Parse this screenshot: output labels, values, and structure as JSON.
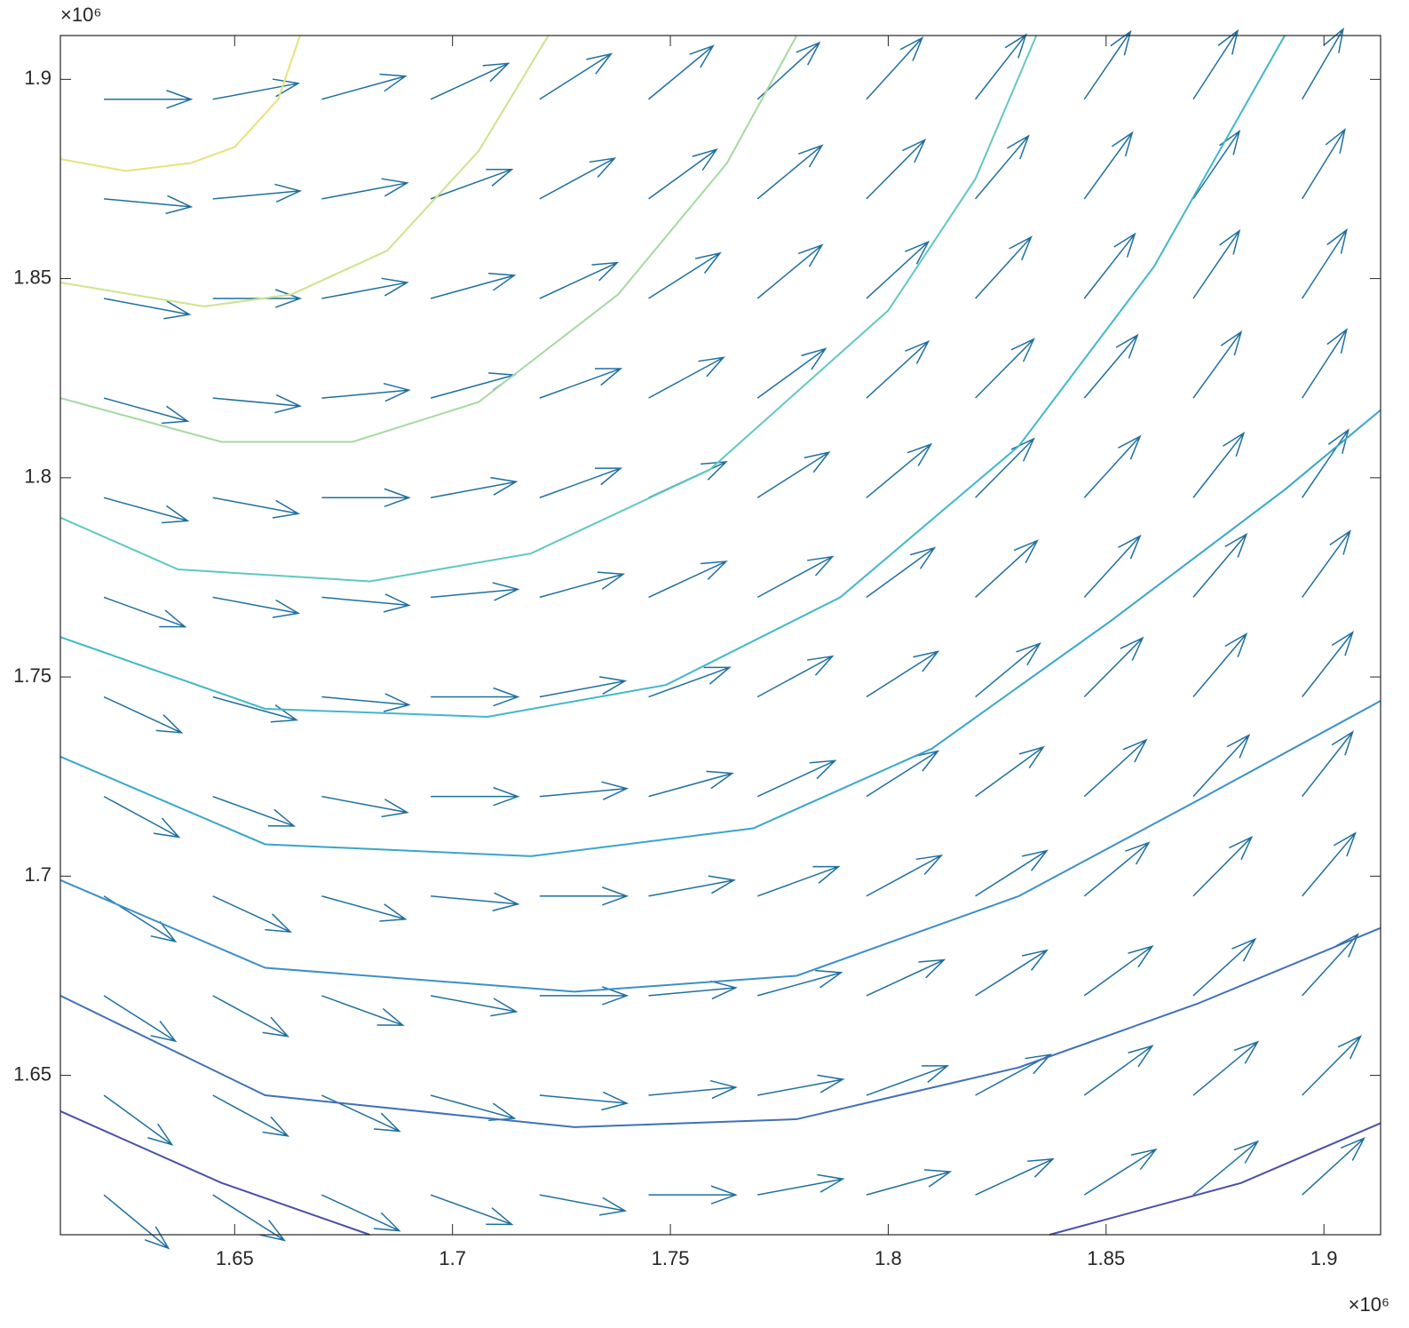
{
  "chart_data": {
    "type": "quiver",
    "xlim": [
      1.61,
      1.913
    ],
    "ylim": [
      1.61,
      1.911
    ],
    "xticks": [
      1.65,
      1.7,
      1.75,
      1.8,
      1.85,
      1.9
    ],
    "yticks": [
      1.65,
      1.7,
      1.75,
      1.8,
      1.85,
      1.9
    ],
    "x_exponent_label": "×10⁶",
    "y_exponent_label": "×10⁶",
    "box": true,
    "grid": false,
    "quiver": {
      "color": "#1f6f9f",
      "x": [
        1.62,
        1.645,
        1.67,
        1.695,
        1.72,
        1.745,
        1.77,
        1.795,
        1.82,
        1.845,
        1.87,
        1.895
      ],
      "y": [
        1.62,
        1.645,
        1.67,
        1.695,
        1.72,
        1.745,
        1.77,
        1.795,
        1.82,
        1.845,
        1.87,
        1.895
      ],
      "u": [
        [
          0.74,
          0.82,
          0.89,
          0.93,
          0.98,
          1,
          0.98,
          0.96,
          0.89,
          0.82,
          0.74,
          0.71
        ],
        [
          0.78,
          0.86,
          0.89,
          0.96,
          1,
          1,
          0.98,
          0.93,
          0.86,
          0.78,
          0.74,
          0.67
        ],
        [
          0.82,
          0.86,
          0.93,
          0.98,
          1,
          1,
          0.96,
          0.89,
          0.82,
          0.78,
          0.71,
          0.64
        ],
        [
          0.82,
          0.89,
          0.96,
          1,
          1,
          0.98,
          0.93,
          0.86,
          0.82,
          0.74,
          0.67,
          0.61
        ],
        [
          0.86,
          0.93,
          0.98,
          1,
          1,
          0.96,
          0.89,
          0.82,
          0.78,
          0.71,
          0.64,
          0.58
        ],
        [
          0.89,
          0.96,
          1,
          1,
          0.98,
          0.93,
          0.86,
          0.82,
          0.74,
          0.67,
          0.61,
          0.58
        ],
        [
          0.93,
          0.98,
          1,
          1,
          0.96,
          0.89,
          0.86,
          0.78,
          0.71,
          0.64,
          0.61,
          0.55
        ],
        [
          0.96,
          0.98,
          1,
          0.98,
          0.93,
          0.89,
          0.82,
          0.74,
          0.67,
          0.64,
          0.58,
          0.53
        ],
        [
          0.96,
          1,
          1,
          0.96,
          0.93,
          0.86,
          0.78,
          0.71,
          0.67,
          0.61,
          0.55,
          0.51
        ],
        [
          0.98,
          1,
          0.98,
          0.96,
          0.89,
          0.82,
          0.74,
          0.71,
          0.64,
          0.58,
          0.53,
          0.51
        ],
        [
          1,
          1,
          0.98,
          0.93,
          0.86,
          0.78,
          0.74,
          0.67,
          0.61,
          0.55,
          0.53,
          0.49
        ],
        [
          1,
          0.98,
          0.96,
          0.89,
          0.82,
          0.74,
          0.71,
          0.64,
          0.58,
          0.53,
          0.51,
          0.47
        ]
      ],
      "v": [
        [
          -0.67,
          -0.57,
          -0.45,
          -0.37,
          -0.2,
          0,
          0.2,
          0.29,
          0.45,
          0.57,
          0.67,
          0.71
        ],
        [
          -0.62,
          -0.51,
          -0.45,
          -0.29,
          -0.1,
          0.1,
          0.2,
          0.37,
          0.51,
          0.62,
          0.67,
          0.74
        ],
        [
          -0.57,
          -0.51,
          -0.37,
          -0.2,
          0,
          0.1,
          0.29,
          0.45,
          0.57,
          0.62,
          0.71,
          0.77
        ],
        [
          -0.57,
          -0.45,
          -0.29,
          -0.1,
          0,
          0.2,
          0.37,
          0.51,
          0.57,
          0.67,
          0.74,
          0.79
        ],
        [
          -0.51,
          -0.37,
          -0.2,
          0,
          0.1,
          0.29,
          0.45,
          0.57,
          0.62,
          0.71,
          0.77,
          0.81
        ],
        [
          -0.45,
          -0.29,
          -0.1,
          0,
          0.2,
          0.37,
          0.51,
          0.57,
          0.67,
          0.74,
          0.79,
          0.81
        ],
        [
          -0.37,
          -0.2,
          -0.1,
          0.1,
          0.29,
          0.45,
          0.51,
          0.62,
          0.71,
          0.77,
          0.79,
          0.83
        ],
        [
          -0.29,
          -0.2,
          0,
          0.2,
          0.37,
          0.45,
          0.57,
          0.67,
          0.74,
          0.77,
          0.81,
          0.85
        ],
        [
          -0.29,
          -0.1,
          0.1,
          0.29,
          0.37,
          0.51,
          0.62,
          0.71,
          0.74,
          0.79,
          0.83,
          0.86
        ],
        [
          -0.2,
          0,
          0.2,
          0.29,
          0.45,
          0.57,
          0.67,
          0.71,
          0.77,
          0.81,
          0.85,
          0.86
        ],
        [
          -0.1,
          0.1,
          0.2,
          0.37,
          0.51,
          0.62,
          0.67,
          0.74,
          0.79,
          0.83,
          0.85,
          0.87
        ],
        [
          0,
          0.2,
          0.29,
          0.45,
          0.57,
          0.67,
          0.71,
          0.77,
          0.81,
          0.85,
          0.86,
          0.88
        ]
      ]
    },
    "contours": [
      {
        "color": "#e6e27a",
        "x": [
          1.61,
          1.625,
          1.64,
          1.65,
          1.66,
          1.665
        ],
        "y": [
          1.88,
          1.877,
          1.879,
          1.883,
          1.895,
          1.911
        ]
      },
      {
        "color": "#cde38a",
        "x": [
          1.61,
          1.643,
          1.663,
          1.685,
          1.706,
          1.722
        ],
        "y": [
          1.849,
          1.843,
          1.846,
          1.857,
          1.882,
          1.911
        ]
      },
      {
        "color": "#a6d9a2",
        "x": [
          1.61,
          1.647,
          1.677,
          1.706,
          1.738,
          1.763,
          1.779
        ],
        "y": [
          1.82,
          1.809,
          1.809,
          1.819,
          1.846,
          1.879,
          1.911
        ]
      },
      {
        "color": "#5fc9c0",
        "x": [
          1.61,
          1.637,
          1.681,
          1.718,
          1.759,
          1.8,
          1.82,
          1.834
        ],
        "y": [
          1.79,
          1.777,
          1.774,
          1.781,
          1.802,
          1.842,
          1.875,
          1.911
        ]
      },
      {
        "color": "#40b8c8",
        "x": [
          1.61,
          1.657,
          1.708,
          1.749,
          1.789,
          1.83,
          1.861,
          1.891
        ],
        "y": [
          1.76,
          1.742,
          1.74,
          1.748,
          1.77,
          1.808,
          1.853,
          1.911
        ]
      },
      {
        "color": "#38a6c9",
        "x": [
          1.61,
          1.657,
          1.718,
          1.769,
          1.81,
          1.851,
          1.891,
          1.913
        ],
        "y": [
          1.73,
          1.708,
          1.705,
          1.712,
          1.732,
          1.764,
          1.797,
          1.817
        ]
      },
      {
        "color": "#3c8fc8",
        "x": [
          1.61,
          1.657,
          1.728,
          1.779,
          1.83,
          1.871,
          1.913
        ],
        "y": [
          1.699,
          1.677,
          1.671,
          1.675,
          1.695,
          1.719,
          1.744
        ]
      },
      {
        "color": "#4070b8",
        "x": [
          1.61,
          1.657,
          1.728,
          1.779,
          1.83,
          1.871,
          1.913
        ],
        "y": [
          1.67,
          1.645,
          1.637,
          1.639,
          1.652,
          1.668,
          1.687
        ]
      },
      {
        "color": "#4a50a8",
        "x": [
          1.61,
          1.647,
          1.681
        ],
        "y": [
          1.641,
          1.623,
          1.61
        ]
      },
      {
        "color": "#4a50a8",
        "x": [
          1.837,
          1.881,
          1.913
        ],
        "y": [
          1.61,
          1.623,
          1.638
        ]
      }
    ]
  }
}
